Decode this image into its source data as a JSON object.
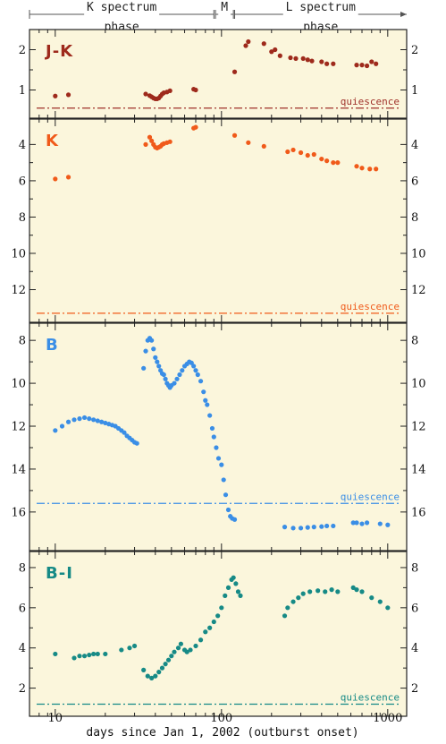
{
  "chart_data": {
    "type": "scatter",
    "x_scale": "log",
    "xlim": [
      7,
      1300
    ],
    "x_ticks": [
      10,
      100,
      1000
    ],
    "x_tick_labels": [
      "10",
      "100",
      "1000"
    ],
    "xlabel": "days since Jan 1, 2002 (outburst onset)",
    "phases": [
      {
        "label_line1": "K spectrum",
        "label_line2": "phase",
        "start": 7,
        "end": 90
      },
      {
        "label_line1": "M",
        "label_line2": "",
        "start": 92,
        "end": 118
      },
      {
        "label_line1": "L spectrum",
        "label_line2": "phase",
        "start": 120,
        "end": 1300
      }
    ],
    "panels": [
      {
        "id": "jk",
        "label": "J-K",
        "color": "#9e2a1c",
        "ylim": [
          0.3,
          2.5
        ],
        "inverted": false,
        "y_ticks": [
          1,
          2
        ],
        "y_tick_labels": [
          "1",
          "2"
        ],
        "quiescence": 0.55,
        "quiescence_label": "quiescence",
        "quiescence_color": "#a0312a",
        "points": [
          [
            10,
            0.85
          ],
          [
            12,
            0.88
          ],
          [
            35,
            0.9
          ],
          [
            37,
            0.86
          ],
          [
            38,
            0.83
          ],
          [
            39,
            0.8
          ],
          [
            40,
            0.78
          ],
          [
            41,
            0.78
          ],
          [
            42,
            0.8
          ],
          [
            43,
            0.85
          ],
          [
            44,
            0.9
          ],
          [
            45,
            0.93
          ],
          [
            47,
            0.95
          ],
          [
            49,
            0.98
          ],
          [
            68,
            1.02
          ],
          [
            70,
            1.0
          ],
          [
            120,
            1.45
          ],
          [
            140,
            2.1
          ],
          [
            145,
            2.2
          ],
          [
            180,
            2.15
          ],
          [
            200,
            1.95
          ],
          [
            210,
            2.0
          ],
          [
            225,
            1.85
          ],
          [
            260,
            1.8
          ],
          [
            280,
            1.78
          ],
          [
            310,
            1.78
          ],
          [
            330,
            1.75
          ],
          [
            350,
            1.72
          ],
          [
            400,
            1.7
          ],
          [
            430,
            1.65
          ],
          [
            470,
            1.65
          ],
          [
            650,
            1.62
          ],
          [
            700,
            1.62
          ],
          [
            750,
            1.6
          ],
          [
            800,
            1.7
          ],
          [
            850,
            1.65
          ]
        ]
      },
      {
        "id": "k",
        "label": "K",
        "color": "#f05a1a",
        "ylim": [
          13.8,
          2.6
        ],
        "inverted": true,
        "y_ticks": [
          4,
          6,
          8,
          10,
          12
        ],
        "y_tick_labels": [
          "4",
          "6",
          "8",
          "10",
          "12"
        ],
        "quiescence": 13.3,
        "quiescence_label": "quiescence",
        "quiescence_color": "#f05a1a",
        "points": [
          [
            10,
            5.9
          ],
          [
            12,
            5.8
          ],
          [
            35,
            4.0
          ],
          [
            37,
            3.6
          ],
          [
            38,
            3.8
          ],
          [
            39,
            4.0
          ],
          [
            40,
            4.15
          ],
          [
            41,
            4.2
          ],
          [
            42,
            4.15
          ],
          [
            43,
            4.1
          ],
          [
            44,
            4.0
          ],
          [
            45,
            3.95
          ],
          [
            47,
            3.9
          ],
          [
            49,
            3.85
          ],
          [
            68,
            3.1
          ],
          [
            70,
            3.05
          ],
          [
            120,
            3.5
          ],
          [
            145,
            3.9
          ],
          [
            180,
            4.1
          ],
          [
            250,
            4.4
          ],
          [
            270,
            4.3
          ],
          [
            300,
            4.45
          ],
          [
            330,
            4.6
          ],
          [
            360,
            4.55
          ],
          [
            400,
            4.8
          ],
          [
            430,
            4.9
          ],
          [
            470,
            5.0
          ],
          [
            500,
            5.0
          ],
          [
            650,
            5.2
          ],
          [
            700,
            5.3
          ],
          [
            780,
            5.35
          ],
          [
            850,
            5.35
          ]
        ]
      },
      {
        "id": "b",
        "label": "B",
        "color": "#3a8ee6",
        "ylim": [
          17.8,
          7.2
        ],
        "inverted": true,
        "y_ticks": [
          8,
          10,
          12,
          14,
          16
        ],
        "y_tick_labels": [
          "8",
          "10",
          "12",
          "14",
          "16"
        ],
        "quiescence": 15.6,
        "quiescence_label": "quiescence",
        "quiescence_color": "#3a8ee6",
        "points": [
          [
            10,
            12.2
          ],
          [
            11,
            12.0
          ],
          [
            12,
            11.8
          ],
          [
            13,
            11.7
          ],
          [
            14,
            11.65
          ],
          [
            15,
            11.6
          ],
          [
            16,
            11.65
          ],
          [
            17,
            11.7
          ],
          [
            18,
            11.75
          ],
          [
            19,
            11.8
          ],
          [
            20,
            11.85
          ],
          [
            21,
            11.9
          ],
          [
            22,
            11.95
          ],
          [
            23,
            12.0
          ],
          [
            24,
            12.1
          ],
          [
            25,
            12.2
          ],
          [
            26,
            12.3
          ],
          [
            27,
            12.45
          ],
          [
            28,
            12.55
          ],
          [
            29,
            12.65
          ],
          [
            30,
            12.75
          ],
          [
            31,
            12.8
          ],
          [
            34,
            9.3
          ],
          [
            35,
            8.5
          ],
          [
            36,
            8.0
          ],
          [
            37,
            7.9
          ],
          [
            38,
            8.0
          ],
          [
            39,
            8.4
          ],
          [
            40,
            8.8
          ],
          [
            41,
            9.0
          ],
          [
            42,
            9.2
          ],
          [
            43,
            9.4
          ],
          [
            44,
            9.55
          ],
          [
            45,
            9.6
          ],
          [
            46,
            9.8
          ],
          [
            47,
            10.0
          ],
          [
            48,
            10.1
          ],
          [
            49,
            10.2
          ],
          [
            50,
            10.1
          ],
          [
            52,
            10.0
          ],
          [
            54,
            9.8
          ],
          [
            56,
            9.6
          ],
          [
            58,
            9.4
          ],
          [
            60,
            9.2
          ],
          [
            62,
            9.1
          ],
          [
            64,
            9.0
          ],
          [
            66,
            9.05
          ],
          [
            68,
            9.2
          ],
          [
            70,
            9.4
          ],
          [
            72,
            9.6
          ],
          [
            75,
            9.9
          ],
          [
            78,
            10.4
          ],
          [
            80,
            10.8
          ],
          [
            82,
            11.0
          ],
          [
            85,
            11.5
          ],
          [
            88,
            12.1
          ],
          [
            90,
            12.5
          ],
          [
            93,
            13.0
          ],
          [
            96,
            13.5
          ],
          [
            100,
            13.8
          ],
          [
            103,
            14.5
          ],
          [
            106,
            15.2
          ],
          [
            110,
            15.9
          ],
          [
            113,
            16.2
          ],
          [
            116,
            16.3
          ],
          [
            120,
            16.35
          ],
          [
            240,
            16.7
          ],
          [
            270,
            16.75
          ],
          [
            300,
            16.75
          ],
          [
            330,
            16.72
          ],
          [
            360,
            16.7
          ],
          [
            400,
            16.68
          ],
          [
            430,
            16.65
          ],
          [
            470,
            16.65
          ],
          [
            620,
            16.5
          ],
          [
            650,
            16.5
          ],
          [
            700,
            16.55
          ],
          [
            750,
            16.5
          ],
          [
            900,
            16.55
          ],
          [
            1000,
            16.6
          ]
        ]
      },
      {
        "id": "bi",
        "label": "B-I",
        "color": "#168a86",
        "ylim": [
          0.6,
          8.8
        ],
        "inverted": false,
        "y_ticks": [
          2,
          4,
          6,
          8
        ],
        "y_tick_labels": [
          "2",
          "4",
          "6",
          "8"
        ],
        "quiescence": 1.2,
        "quiescence_label": "quiescence",
        "quiescence_color": "#168a86",
        "points": [
          [
            10,
            3.7
          ],
          [
            13,
            3.5
          ],
          [
            14,
            3.6
          ],
          [
            15,
            3.6
          ],
          [
            16,
            3.65
          ],
          [
            17,
            3.7
          ],
          [
            18,
            3.7
          ],
          [
            20,
            3.7
          ],
          [
            25,
            3.9
          ],
          [
            28,
            4.0
          ],
          [
            30,
            4.1
          ],
          [
            34,
            2.9
          ],
          [
            36,
            2.6
          ],
          [
            38,
            2.5
          ],
          [
            40,
            2.6
          ],
          [
            42,
            2.8
          ],
          [
            44,
            3.0
          ],
          [
            46,
            3.2
          ],
          [
            48,
            3.4
          ],
          [
            50,
            3.6
          ],
          [
            52,
            3.8
          ],
          [
            55,
            4.0
          ],
          [
            57,
            4.2
          ],
          [
            60,
            3.9
          ],
          [
            62,
            3.8
          ],
          [
            65,
            3.9
          ],
          [
            70,
            4.1
          ],
          [
            75,
            4.4
          ],
          [
            80,
            4.8
          ],
          [
            85,
            5.0
          ],
          [
            90,
            5.3
          ],
          [
            95,
            5.6
          ],
          [
            100,
            6.0
          ],
          [
            105,
            6.6
          ],
          [
            110,
            7.0
          ],
          [
            115,
            7.4
          ],
          [
            118,
            7.5
          ],
          [
            122,
            7.2
          ],
          [
            126,
            6.8
          ],
          [
            130,
            6.6
          ],
          [
            240,
            5.6
          ],
          [
            250,
            6.0
          ],
          [
            270,
            6.3
          ],
          [
            290,
            6.5
          ],
          [
            310,
            6.7
          ],
          [
            340,
            6.8
          ],
          [
            380,
            6.85
          ],
          [
            420,
            6.8
          ],
          [
            460,
            6.9
          ],
          [
            500,
            6.8
          ],
          [
            620,
            7.0
          ],
          [
            650,
            6.9
          ],
          [
            700,
            6.8
          ],
          [
            800,
            6.5
          ],
          [
            900,
            6.3
          ],
          [
            1000,
            6.0
          ]
        ]
      }
    ]
  }
}
